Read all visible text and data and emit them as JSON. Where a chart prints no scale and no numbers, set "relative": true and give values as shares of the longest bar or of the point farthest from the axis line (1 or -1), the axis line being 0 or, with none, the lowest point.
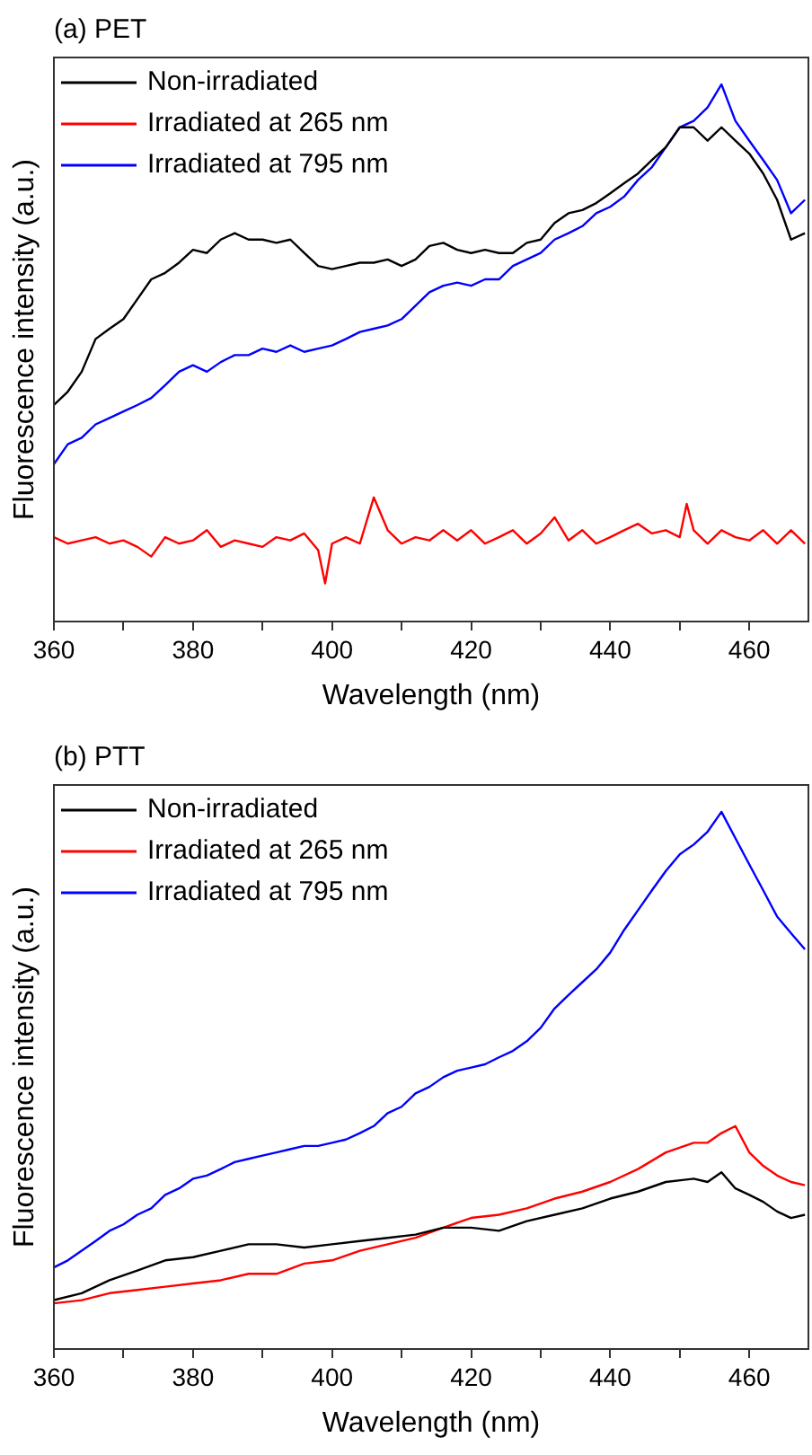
{
  "chart_data": [
    {
      "type": "line",
      "title": "(a) PET",
      "xlabel": "Wavelength (nm)",
      "ylabel": "Fluorescence intensity (a.u.)",
      "relative": true,
      "legend": "top left",
      "grid": false,
      "marker": "none",
      "line_style": "solid",
      "xlim": [
        360,
        468.5
      ],
      "xticks": [
        360,
        {
          "value": 370,
          "label": null
        },
        380,
        {
          "value": 390,
          "label": null
        },
        400,
        {
          "value": 410,
          "label": null
        },
        420,
        {
          "value": 430,
          "label": null
        },
        440,
        {
          "value": 450,
          "label": null
        },
        460
      ],
      "series": [
        {
          "name": "Non-irradiated",
          "color": "#000000",
          "x": [
            360,
            362,
            364,
            366,
            368,
            370,
            372,
            374,
            376,
            378,
            380,
            382,
            384,
            386,
            388,
            390,
            392,
            394,
            396,
            398,
            400,
            402,
            404,
            406,
            408,
            410,
            412,
            414,
            416,
            418,
            420,
            422,
            424,
            426,
            428,
            430,
            432,
            434,
            436,
            438,
            440,
            442,
            444,
            446,
            448,
            450,
            452,
            454,
            456,
            458,
            460,
            462,
            464,
            466,
            468
          ],
          "values": [
            0.403,
            0.428,
            0.465,
            0.526,
            0.545,
            0.563,
            0.6,
            0.637,
            0.649,
            0.668,
            0.692,
            0.686,
            0.711,
            0.723,
            0.711,
            0.711,
            0.705,
            0.711,
            0.686,
            0.662,
            0.656,
            0.662,
            0.668,
            0.668,
            0.674,
            0.662,
            0.674,
            0.699,
            0.705,
            0.692,
            0.686,
            0.692,
            0.686,
            0.686,
            0.705,
            0.711,
            0.742,
            0.76,
            0.766,
            0.779,
            0.797,
            0.816,
            0.834,
            0.859,
            0.883,
            0.92,
            0.92,
            0.895,
            0.92,
            0.895,
            0.871,
            0.834,
            0.785,
            0.711,
            0.723
          ]
        },
        {
          "name": "Irradiated at 265 nm",
          "color": "#ff0000",
          "x": [
            360,
            362,
            364,
            366,
            368,
            370,
            372,
            374,
            376,
            378,
            380,
            382,
            384,
            386,
            388,
            390,
            392,
            394,
            396,
            398,
            399,
            400,
            402,
            404,
            406,
            408,
            410,
            412,
            414,
            416,
            418,
            420,
            422,
            424,
            426,
            428,
            430,
            432,
            434,
            436,
            438,
            440,
            442,
            444,
            446,
            448,
            450,
            451,
            452,
            454,
            456,
            458,
            460,
            462,
            464,
            466,
            468
          ],
          "values": [
            0.157,
            0.145,
            0.151,
            0.157,
            0.145,
            0.151,
            0.139,
            0.121,
            0.157,
            0.145,
            0.151,
            0.17,
            0.139,
            0.151,
            0.145,
            0.139,
            0.157,
            0.151,
            0.164,
            0.133,
            0.071,
            0.145,
            0.157,
            0.145,
            0.231,
            0.17,
            0.145,
            0.157,
            0.151,
            0.17,
            0.151,
            0.17,
            0.145,
            0.157,
            0.17,
            0.145,
            0.164,
            0.194,
            0.151,
            0.17,
            0.145,
            0.157,
            0.17,
            0.182,
            0.164,
            0.17,
            0.157,
            0.219,
            0.17,
            0.145,
            0.17,
            0.157,
            0.151,
            0.17,
            0.145,
            0.17,
            0.145
          ]
        },
        {
          "name": "Irradiated at 795 nm",
          "color": "#0000ff",
          "x": [
            360,
            362,
            364,
            366,
            368,
            370,
            372,
            374,
            376,
            378,
            380,
            382,
            384,
            386,
            388,
            390,
            392,
            394,
            396,
            398,
            400,
            402,
            404,
            406,
            408,
            410,
            412,
            414,
            416,
            418,
            420,
            422,
            424,
            426,
            428,
            430,
            432,
            434,
            436,
            438,
            440,
            442,
            444,
            446,
            448,
            450,
            452,
            454,
            456,
            458,
            460,
            462,
            464,
            466,
            468
          ],
          "values": [
            0.293,
            0.33,
            0.342,
            0.367,
            0.379,
            0.391,
            0.403,
            0.416,
            0.44,
            0.465,
            0.477,
            0.465,
            0.483,
            0.496,
            0.496,
            0.508,
            0.502,
            0.514,
            0.502,
            0.508,
            0.514,
            0.526,
            0.539,
            0.545,
            0.551,
            0.563,
            0.588,
            0.613,
            0.625,
            0.631,
            0.625,
            0.637,
            0.637,
            0.662,
            0.674,
            0.686,
            0.711,
            0.723,
            0.736,
            0.76,
            0.772,
            0.791,
            0.822,
            0.846,
            0.883,
            0.92,
            0.932,
            0.957,
            1,
            0.932,
            0.895,
            0.859,
            0.822,
            0.76,
            0.785
          ]
        }
      ]
    },
    {
      "type": "line",
      "title": "(b) PTT",
      "xlabel": "Wavelength (nm)",
      "ylabel": "Fluorescence intensity (a.u.)",
      "relative": true,
      "legend": "top left",
      "grid": false,
      "marker": "none",
      "line_style": "solid",
      "xlim": [
        360,
        468.5
      ],
      "xticks": [
        360,
        {
          "value": 370,
          "label": null
        },
        380,
        {
          "value": 390,
          "label": null
        },
        400,
        {
          "value": 410,
          "label": null
        },
        420,
        {
          "value": 430,
          "label": null
        },
        440,
        {
          "value": 450,
          "label": null
        },
        460
      ],
      "series": [
        {
          "name": "Non-irradiated",
          "color": "#000000",
          "x": [
            360,
            364,
            368,
            372,
            376,
            380,
            384,
            388,
            392,
            396,
            400,
            404,
            408,
            412,
            416,
            420,
            424,
            428,
            432,
            436,
            440,
            444,
            448,
            452,
            454,
            456,
            458,
            460,
            462,
            464,
            466,
            468
          ],
          "values": [
            0.091,
            0.104,
            0.128,
            0.146,
            0.165,
            0.171,
            0.183,
            0.195,
            0.195,
            0.189,
            0.195,
            0.201,
            0.207,
            0.213,
            0.226,
            0.226,
            0.22,
            0.238,
            0.25,
            0.262,
            0.28,
            0.293,
            0.311,
            0.317,
            0.311,
            0.329,
            0.299,
            0.287,
            0.274,
            0.256,
            0.244,
            0.25
          ]
        },
        {
          "name": "Irradiated at 265 nm",
          "color": "#ff0000",
          "x": [
            360,
            364,
            368,
            372,
            376,
            380,
            384,
            388,
            392,
            396,
            400,
            404,
            408,
            412,
            416,
            420,
            424,
            428,
            432,
            436,
            440,
            444,
            448,
            452,
            454,
            456,
            458,
            460,
            462,
            464,
            466,
            468
          ],
          "values": [
            0.085,
            0.091,
            0.104,
            0.11,
            0.116,
            0.122,
            0.128,
            0.14,
            0.14,
            0.159,
            0.165,
            0.183,
            0.195,
            0.207,
            0.226,
            0.244,
            0.25,
            0.262,
            0.28,
            0.293,
            0.311,
            0.335,
            0.366,
            0.384,
            0.384,
            0.402,
            0.415,
            0.366,
            0.341,
            0.323,
            0.311,
            0.305
          ]
        },
        {
          "name": "Irradiated at 795 nm",
          "color": "#0000ff",
          "x": [
            360,
            362,
            364,
            366,
            368,
            370,
            372,
            374,
            376,
            378,
            380,
            382,
            384,
            386,
            388,
            390,
            392,
            394,
            396,
            398,
            400,
            402,
            404,
            406,
            408,
            410,
            412,
            414,
            416,
            418,
            420,
            422,
            424,
            426,
            428,
            430,
            432,
            434,
            436,
            438,
            440,
            442,
            444,
            446,
            448,
            450,
            452,
            454,
            456,
            458,
            460,
            462,
            464,
            466,
            468
          ],
          "values": [
            0.152,
            0.165,
            0.183,
            0.201,
            0.22,
            0.232,
            0.25,
            0.262,
            0.287,
            0.299,
            0.317,
            0.323,
            0.335,
            0.348,
            0.354,
            0.36,
            0.366,
            0.372,
            0.378,
            0.378,
            0.384,
            0.39,
            0.402,
            0.415,
            0.439,
            0.451,
            0.476,
            0.488,
            0.506,
            0.518,
            0.524,
            0.53,
            0.543,
            0.555,
            0.573,
            0.598,
            0.634,
            0.659,
            0.683,
            0.707,
            0.738,
            0.78,
            0.817,
            0.854,
            0.89,
            0.921,
            0.939,
            0.963,
            1,
            0.951,
            0.902,
            0.854,
            0.805,
            0.774,
            0.744
          ]
        }
      ]
    }
  ]
}
